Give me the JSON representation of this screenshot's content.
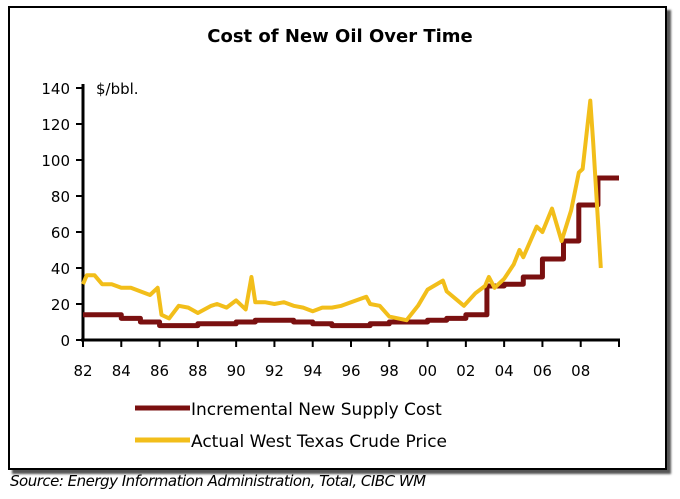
{
  "chart_data": {
    "type": "line",
    "title": "Cost of New Oil Over Time",
    "ylabel": "$/bbl.",
    "xlabel": "",
    "ylim": [
      0,
      140
    ],
    "xlim": [
      1982,
      2010
    ],
    "yticks": [
      0,
      20,
      40,
      60,
      80,
      100,
      120,
      140
    ],
    "xticks": [
      {
        "v": 1982,
        "label": "82"
      },
      {
        "v": 1984,
        "label": "84"
      },
      {
        "v": 1986,
        "label": "86"
      },
      {
        "v": 1988,
        "label": "88"
      },
      {
        "v": 1990,
        "label": "90"
      },
      {
        "v": 1992,
        "label": "92"
      },
      {
        "v": 1994,
        "label": "94"
      },
      {
        "v": 1996,
        "label": "96"
      },
      {
        "v": 1998,
        "label": "98"
      },
      {
        "v": 2000,
        "label": "00"
      },
      {
        "v": 2002,
        "label": "02"
      },
      {
        "v": 2004,
        "label": "04"
      },
      {
        "v": 2006,
        "label": "06"
      },
      {
        "v": 2008,
        "label": "08"
      }
    ],
    "grid": false,
    "legend_position": "bottom",
    "series": [
      {
        "name": "Incremental New Supply Cost",
        "color": "#7a1010",
        "step": true,
        "x": [
          1982,
          1984,
          1985,
          1986,
          1988,
          1990,
          1991,
          1992,
          1993,
          1994,
          1995,
          1997,
          1998,
          2000,
          2001,
          2002,
          2003.1,
          2004,
          2005,
          2006,
          2007.1,
          2007.9,
          2008.9,
          2010
        ],
        "y": [
          14,
          12,
          10,
          8,
          9,
          10,
          11,
          11,
          10,
          9,
          8,
          9,
          10,
          11,
          12,
          14,
          30,
          31,
          35,
          45,
          55,
          75,
          90,
          90
        ]
      },
      {
        "name": "Actual West Texas Crude Price",
        "color": "#f2be1a",
        "step": false,
        "x": [
          1982,
          1982.2,
          1982.6,
          1983,
          1983.5,
          1984,
          1984.5,
          1985,
          1985.5,
          1985.9,
          1986.1,
          1986.5,
          1987,
          1987.5,
          1988,
          1988.7,
          1989,
          1989.5,
          1990,
          1990.5,
          1990.8,
          1991,
          1991.5,
          1992,
          1992.5,
          1993,
          1993.5,
          1994,
          1994.5,
          1995,
          1995.5,
          1996,
          1996.8,
          1997,
          1997.5,
          1998,
          1998.9,
          1999.5,
          2000,
          2000.8,
          2001,
          2001.9,
          2002.5,
          2003,
          2003.2,
          2003.5,
          2004,
          2004.5,
          2004.8,
          2005,
          2005.7,
          2006,
          2006.5,
          2007,
          2007.5,
          2007.9,
          2008.1,
          2008.5,
          2008.65,
          2009.05
        ],
        "y": [
          31,
          36,
          36,
          31,
          31,
          29,
          29,
          27,
          25,
          29,
          14,
          12,
          19,
          18,
          15,
          19,
          20,
          18,
          22,
          17,
          35,
          21,
          21,
          20,
          21,
          19,
          18,
          16,
          18,
          18,
          19,
          21,
          24,
          20,
          19,
          13,
          11,
          19,
          28,
          33,
          27,
          19,
          26,
          30,
          35,
          29,
          34,
          42,
          50,
          46,
          63,
          60,
          73,
          55,
          72,
          93,
          95,
          133,
          110,
          40
        ]
      }
    ]
  }
}
